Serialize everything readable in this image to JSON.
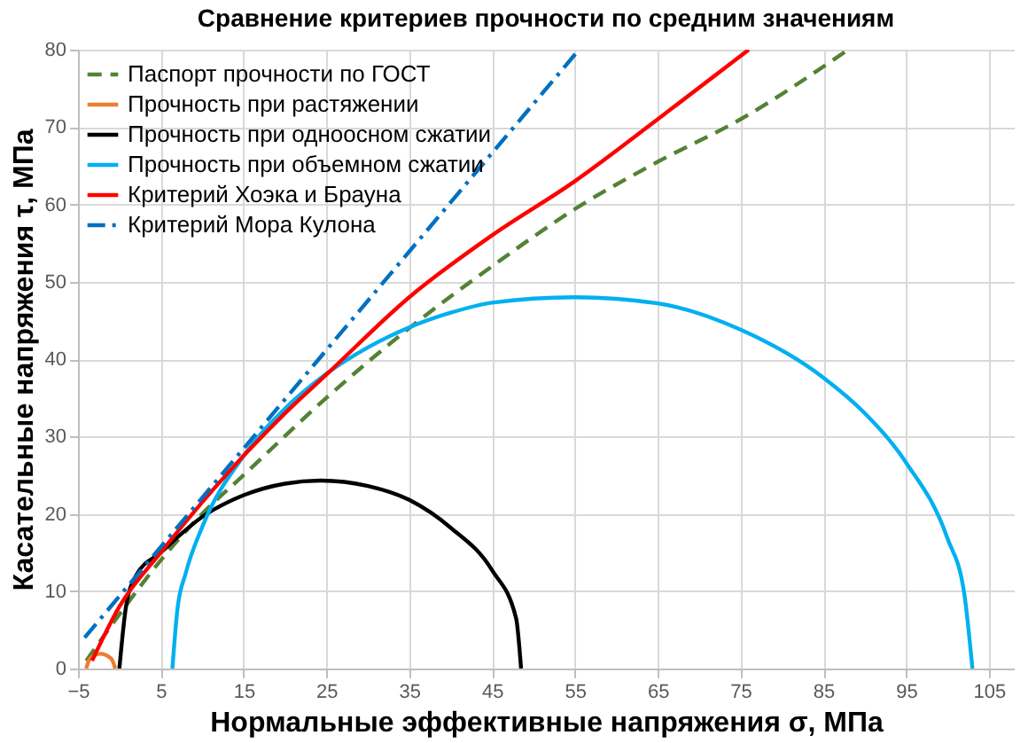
{
  "chart_data": {
    "type": "line",
    "title": "Сравнение критериев прочности по средним значениям",
    "xlabel": "Нормальные эффективные напряжения σ, МПа",
    "ylabel": "Касательные напряжения τ, МПа",
    "xlim": [
      -5,
      108
    ],
    "xticks": [
      -5,
      5,
      15,
      25,
      35,
      45,
      55,
      65,
      75,
      85,
      95,
      105
    ],
    "ylim": [
      0,
      80
    ],
    "yticks": [
      0,
      10,
      20,
      30,
      40,
      50,
      60,
      70,
      80
    ],
    "grid": true,
    "legend": "top left",
    "series": [
      {
        "name": "Паспорт прочности по ГОСТ",
        "color": "#548235",
        "line_style": "dashed",
        "x": [
          -4,
          0,
          5,
          10,
          15,
          25,
          35,
          45,
          55,
          65,
          75,
          88
        ],
        "values": [
          1,
          7,
          14,
          20,
          25,
          35,
          44,
          52,
          59.4,
          65.5,
          71,
          80
        ]
      },
      {
        "name": "Прочность при растяжении",
        "color": "#ed7d31",
        "line_style": "solid",
        "x": [
          -4,
          -3.6,
          -2.3,
          -1,
          -0.5
        ],
        "values": [
          0,
          1.2,
          1.9,
          1.3,
          0
        ]
      },
      {
        "name": "Прочность при одноосном сжатии",
        "color": "#000000",
        "line_style": "solid",
        "x": [
          0,
          0.8,
          2,
          5,
          10,
          15,
          20,
          24.3,
          30,
          35,
          40,
          45,
          47.9,
          48.5
        ],
        "values": [
          0,
          8,
          12,
          15,
          19.6,
          22.4,
          23.9,
          24.3,
          23.6,
          21.8,
          18.2,
          12.7,
          6.5,
          0
        ]
      },
      {
        "name": "Прочность при объемном сжатии",
        "color": "#00b0f0",
        "line_style": "solid",
        "x": [
          6.4,
          7,
          8,
          10,
          15,
          20,
          25,
          30,
          35,
          40,
          45,
          55,
          65,
          75,
          85,
          90,
          95,
          100,
          102,
          103
        ],
        "values": [
          0,
          7.6,
          12.3,
          18.3,
          27.5,
          33.6,
          38.1,
          41.5,
          44.1,
          46,
          47.3,
          48,
          47.2,
          43.8,
          37.6,
          33,
          26.6,
          16.8,
          9.8,
          0
        ]
      },
      {
        "name": "Критерий Хоэка и Брауна",
        "color": "#ff0000",
        "line_style": "solid",
        "x": [
          -3.3,
          0,
          5,
          10,
          15,
          20,
          25,
          35,
          45,
          55,
          65,
          76
        ],
        "values": [
          1,
          8,
          15,
          21.5,
          27.5,
          33,
          38,
          48,
          56,
          63,
          71,
          80
        ]
      },
      {
        "name": "Критерий Мора Кулона",
        "color": "#0070c0",
        "line_style": "dashdot",
        "x": [
          -4.2,
          55.5
        ],
        "values": [
          4,
          80
        ]
      }
    ]
  }
}
